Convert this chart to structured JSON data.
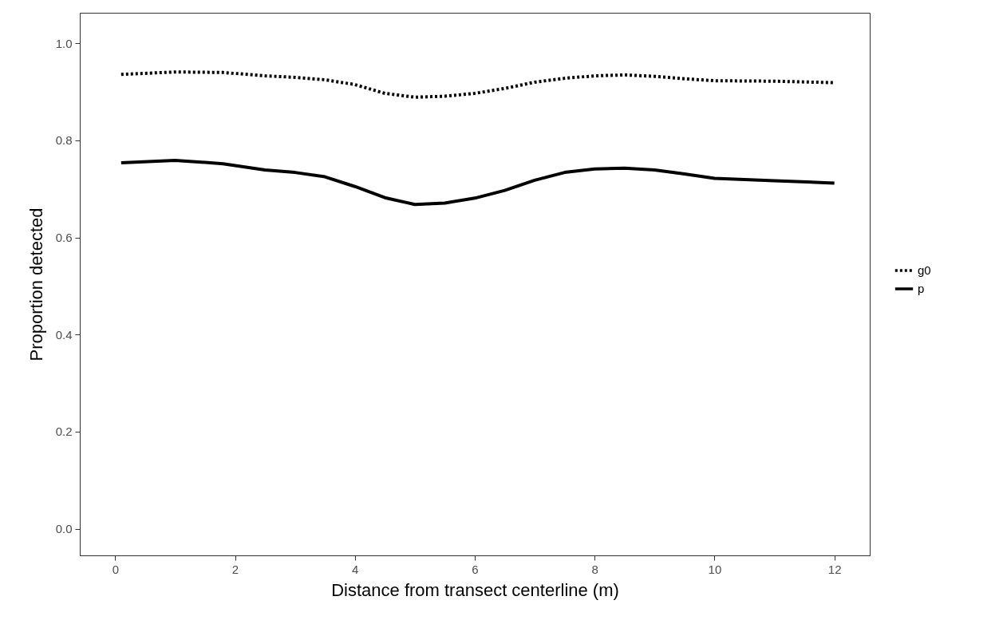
{
  "chart_data": {
    "type": "line",
    "xlabel": "Distance from transect centerline (m)",
    "ylabel": "Proportion detected",
    "xlim": [
      -0.59,
      12.59
    ],
    "xticks": [
      0,
      2,
      4,
      6,
      8,
      10,
      12
    ],
    "ylim": [
      -0.055,
      1.063
    ],
    "yticks": [
      {
        "value": 0,
        "label": "0.0"
      },
      {
        "value": 0.2,
        "label": "0.2"
      },
      {
        "value": 0.4,
        "label": "0.4"
      },
      {
        "value": 0.6,
        "label": "0.6"
      },
      {
        "value": 0.8,
        "label": "0.8"
      },
      {
        "value": 1,
        "label": "1.0"
      }
    ],
    "grid": false,
    "legend": "right",
    "marker": "none",
    "x": [
      0.1,
      1,
      1.8,
      2.5,
      3,
      3.5,
      4,
      4.5,
      5,
      5.5,
      6,
      6.5,
      7,
      7.5,
      8,
      8.5,
      9,
      9.5,
      10,
      11,
      12
    ],
    "series": [
      {
        "name": "g0",
        "color": "#000000",
        "line_style": "dotted",
        "values": [
          0.936,
          0.941,
          0.94,
          0.933,
          0.93,
          0.925,
          0.915,
          0.897,
          0.889,
          0.891,
          0.897,
          0.907,
          0.92,
          0.928,
          0.933,
          0.935,
          0.932,
          0.927,
          0.923,
          0.922,
          0.919
        ]
      },
      {
        "name": "p",
        "color": "#000000",
        "line_style": "solid",
        "values": [
          0.754,
          0.759,
          0.752,
          0.739,
          0.734,
          0.725,
          0.705,
          0.682,
          0.668,
          0.671,
          0.681,
          0.697,
          0.718,
          0.734,
          0.741,
          0.743,
          0.739,
          0.731,
          0.722,
          0.717,
          0.712
        ]
      }
    ]
  }
}
